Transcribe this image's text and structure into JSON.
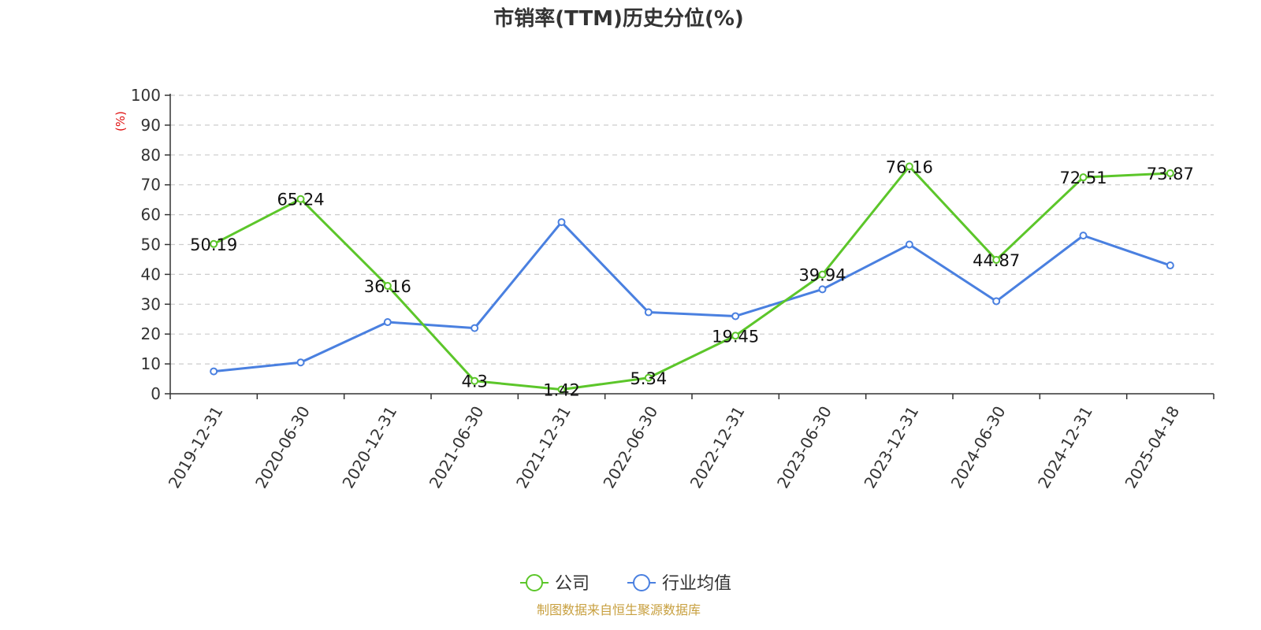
{
  "chart_data": {
    "type": "line",
    "title": "市销率(TTM)历史分位(%)",
    "ylabel": "(%)",
    "xlabel": "",
    "ylim": [
      0,
      100
    ],
    "yticks": [
      0,
      10,
      20,
      30,
      40,
      50,
      60,
      70,
      80,
      90,
      100
    ],
    "grid": true,
    "legend_position": "bottom",
    "categories": [
      "2019-12-31",
      "2020-06-30",
      "2020-12-31",
      "2021-06-30",
      "2021-12-31",
      "2022-06-30",
      "2022-12-31",
      "2023-06-30",
      "2023-12-31",
      "2024-06-30",
      "2024-12-31",
      "2025-04-18"
    ],
    "series": [
      {
        "name": "公司",
        "color": "#5cc62a",
        "values": [
          50.19,
          65.24,
          36.16,
          4.3,
          1.42,
          5.34,
          19.45,
          39.94,
          76.16,
          44.87,
          72.51,
          73.87
        ],
        "labels": [
          "50.19",
          "65.24",
          "36.16",
          "4.3",
          "1.42",
          "5.34",
          "19.45",
          "39.94",
          "76.16",
          "44.87",
          "72.51",
          "73.87"
        ]
      },
      {
        "name": "行业均值",
        "color": "#4a80e0",
        "values": [
          7.5,
          10.5,
          24.0,
          22.0,
          57.5,
          27.3,
          26.0,
          35.0,
          50.0,
          31.0,
          53.0,
          43.0
        ]
      }
    ]
  },
  "source_text": "制图数据来自恒生聚源数据库"
}
